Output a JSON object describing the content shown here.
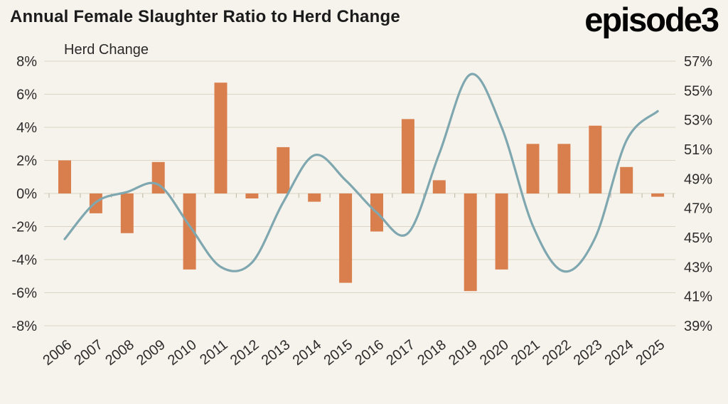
{
  "title": "Annual Female Slaughter Ratio to Herd Change",
  "logo": {
    "text": "episode3"
  },
  "chart_data": {
    "type": "bar",
    "combo": "bar+line dual-axis",
    "title": "Annual Female Slaughter Ratio to Herd Change",
    "categories": [
      "2006",
      "2007",
      "2008",
      "2009",
      "2010",
      "2011",
      "2012",
      "2013",
      "2014",
      "2015",
      "2016",
      "2017",
      "2018",
      "2019",
      "2020",
      "2021",
      "2022",
      "2023",
      "2024",
      "2025"
    ],
    "series": [
      {
        "name": "Herd Change",
        "type": "bar",
        "axis": "left",
        "color": "#D97F4E",
        "values": [
          2.0,
          -1.2,
          -2.4,
          1.9,
          -4.6,
          6.7,
          -0.3,
          2.8,
          -0.5,
          -5.4,
          -2.3,
          4.5,
          0.8,
          -5.9,
          -4.6,
          3.0,
          3.0,
          4.1,
          1.6,
          -0.2
        ]
      },
      {
        "name": "Female Slaughter Ratio",
        "type": "line",
        "axis": "right",
        "color": "#7FA7B0",
        "values": [
          44.9,
          47.4,
          48.1,
          48.6,
          45.8,
          43.0,
          43.3,
          47.4,
          50.6,
          48.9,
          46.7,
          45.3,
          50.7,
          56.1,
          52.5,
          45.8,
          42.7,
          45.0,
          51.6,
          53.6
        ]
      }
    ],
    "left_axis": {
      "label": "Herd Change",
      "min": -8,
      "max": 8,
      "ticks": [
        "8%",
        "6%",
        "4%",
        "2%",
        "0%",
        "-2%",
        "-4%",
        "-6%",
        "-8%"
      ]
    },
    "right_axis": {
      "min": 39,
      "max": 57,
      "ticks": [
        "57%",
        "55%",
        "53%",
        "51%",
        "49%",
        "47%",
        "45%",
        "43%",
        "41%",
        "39%"
      ]
    },
    "grid": true,
    "legend": "none",
    "background": "#F6F3EC",
    "gridline_color": "#DDD6C5",
    "tick_color": "#2B2B2B"
  }
}
